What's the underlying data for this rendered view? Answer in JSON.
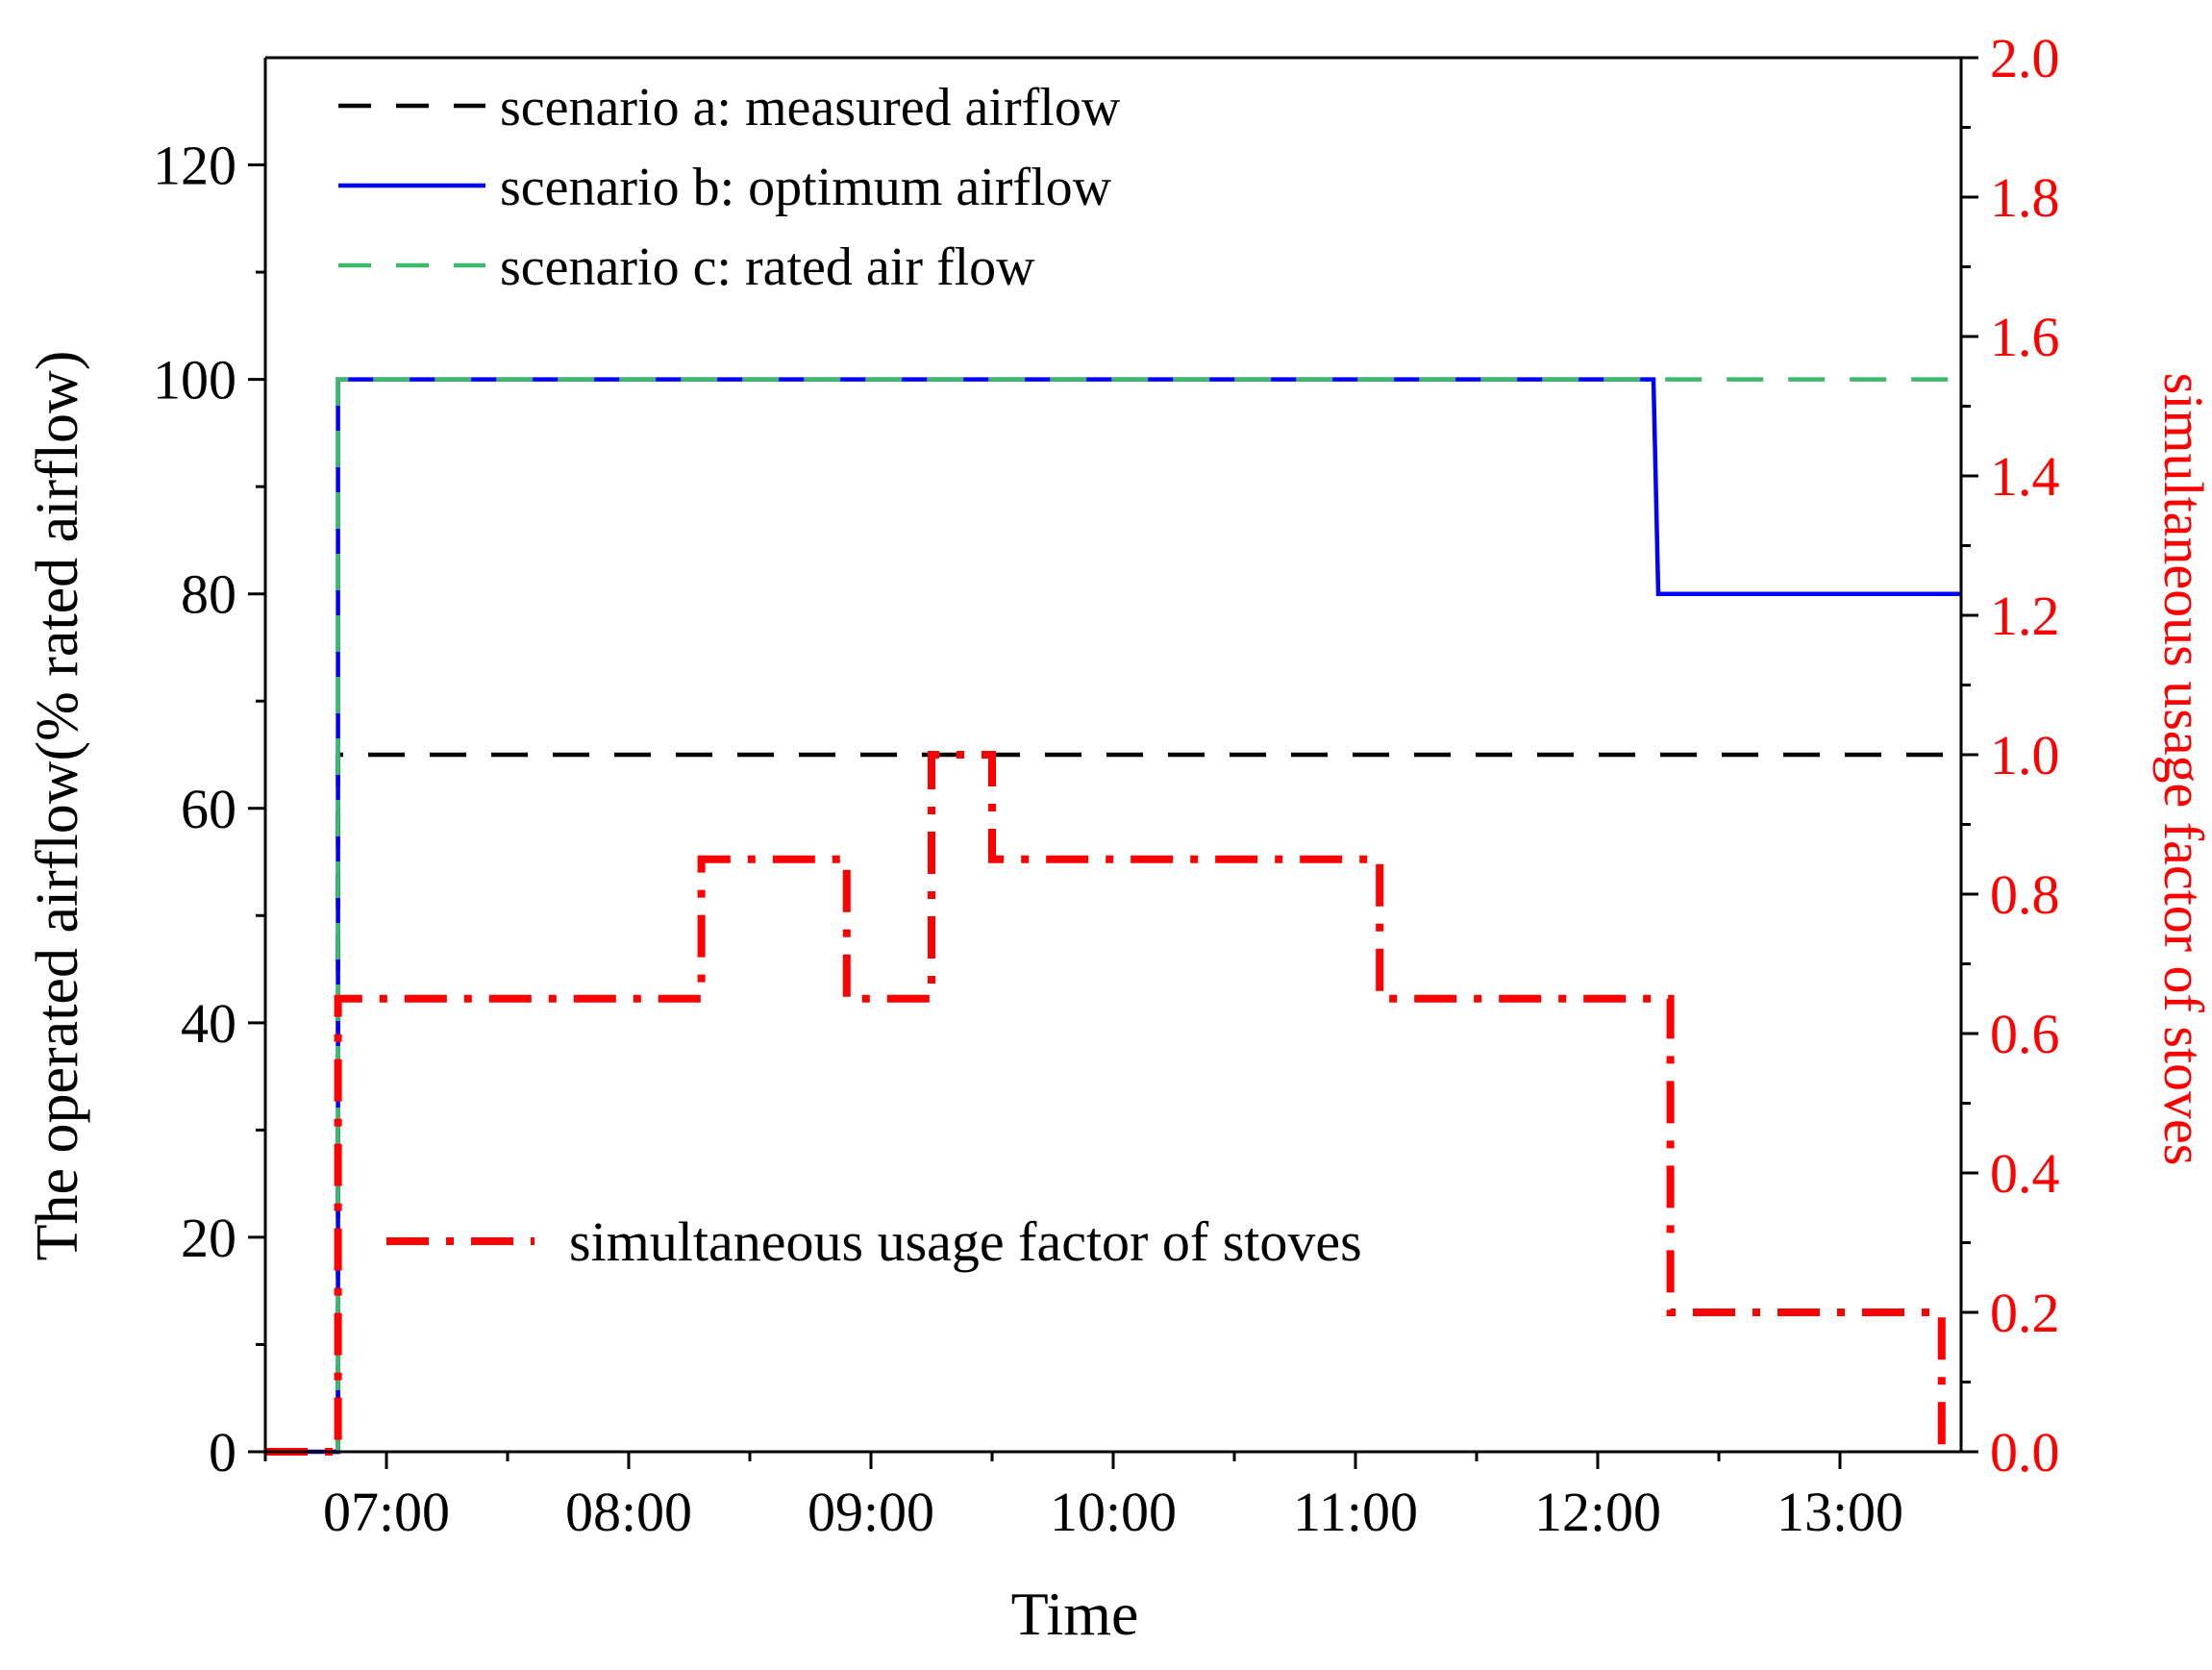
{
  "chart_data": {
    "type": "line",
    "x_unit": "hours",
    "xlabel": "Time",
    "xlim": [
      6.5,
      13.5
    ],
    "x_ticks": [
      7,
      8,
      9,
      10,
      11,
      12,
      13
    ],
    "x_tick_labels": [
      "07:00",
      "08:00",
      "09:00",
      "10:00",
      "11:00",
      "12:00",
      "13:00"
    ],
    "x_minor_ticks": [
      6.5,
      7.5,
      8.5,
      9.5,
      10.5,
      11.5,
      12.5
    ],
    "y_left": {
      "label": "The operated airflow(% rated airflow)",
      "ylim": [
        0,
        130
      ],
      "ticks": [
        0,
        20,
        40,
        60,
        80,
        100,
        120
      ],
      "tick_labels": [
        "0",
        "20",
        "40",
        "60",
        "80",
        "100",
        "120"
      ],
      "minor_ticks": [
        10,
        30,
        50,
        70,
        90,
        110
      ]
    },
    "y_right": {
      "label": "simultaneous usage factor of stoves",
      "ylim": [
        0,
        2.0
      ],
      "ticks": [
        0,
        0.2,
        0.4,
        0.6,
        0.8,
        1.0,
        1.2,
        1.4,
        1.6,
        1.8,
        2.0
      ],
      "tick_labels": [
        "0.0",
        "0.2",
        "0.4",
        "0.6",
        "0.8",
        "1.0",
        "1.2",
        "1.4",
        "1.6",
        "1.8",
        "2.0"
      ],
      "color": "#ff0000"
    },
    "series": [
      {
        "name": "scenario a: measured airflow",
        "axis": "left",
        "color": "#000000",
        "style": "dashed",
        "points": [
          [
            6.5,
            0
          ],
          [
            6.8,
            0
          ],
          [
            6.8,
            65
          ],
          [
            13.5,
            65
          ]
        ]
      },
      {
        "name": "scenario b: optimum airflow",
        "axis": "left",
        "color": "#0000ff",
        "style": "solid",
        "points": [
          [
            6.5,
            0
          ],
          [
            6.8,
            0
          ],
          [
            6.8,
            100
          ],
          [
            12.23,
            100
          ],
          [
            12.25,
            80
          ],
          [
            13.5,
            80
          ]
        ]
      },
      {
        "name": "scenario c: rated air flow",
        "axis": "left",
        "color": "#3cb96b",
        "style": "dashed",
        "points": [
          [
            6.8,
            0
          ],
          [
            6.8,
            100
          ],
          [
            13.5,
            100
          ]
        ]
      },
      {
        "name": "simultaneous usage factor of stoves",
        "axis": "right",
        "color": "#ff0000",
        "style": "dashdot",
        "points": [
          [
            6.5,
            0
          ],
          [
            6.8,
            0
          ],
          [
            6.8,
            0.65
          ],
          [
            8.3,
            0.65
          ],
          [
            8.3,
            0.85
          ],
          [
            8.9,
            0.85
          ],
          [
            8.9,
            0.65
          ],
          [
            9.25,
            0.65
          ],
          [
            9.25,
            1.0
          ],
          [
            9.5,
            1.0
          ],
          [
            9.5,
            0.85
          ],
          [
            11.1,
            0.85
          ],
          [
            11.1,
            0.65
          ],
          [
            12.3,
            0.65
          ],
          [
            12.3,
            0.2
          ],
          [
            13.42,
            0.2
          ],
          [
            13.42,
            0
          ]
        ]
      }
    ],
    "legend_top": {
      "placement": "top-left",
      "entries": [
        "scenario a: measured airflow",
        "scenario b: optimum airflow",
        "scenario c: rated air flow"
      ]
    },
    "legend_bottom": {
      "placement": "bottom-center",
      "entries": [
        "simultaneous usage factor of stoves"
      ]
    }
  }
}
